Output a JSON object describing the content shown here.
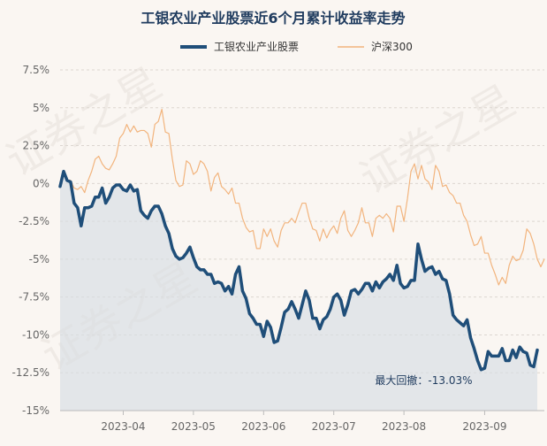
{
  "chart_data": {
    "type": "line",
    "title": "工银农业产业股票近6个月累计收益率走势",
    "legend_position": "top",
    "series": [
      {
        "name": "工银农业产业股票",
        "color": "#1f4e79",
        "area_fill": true,
        "values": [
          -0.2,
          0.8,
          0.2,
          0.1,
          -1.3,
          -1.6,
          -2.8,
          -1.6,
          -1.6,
          -1.5,
          -0.9,
          -0.9,
          -0.3,
          -1.3,
          -0.9,
          -0.3,
          -0.1,
          -0.1,
          -0.4,
          -0.5,
          -0.1,
          -0.5,
          -0.4,
          -1.8,
          -2.1,
          -2.3,
          -1.8,
          -1.5,
          -1.5,
          -2.0,
          -2.8,
          -3.3,
          -4.3,
          -4.8,
          -5.0,
          -4.9,
          -4.6,
          -4.2,
          -4.9,
          -5.5,
          -5.7,
          -5.7,
          -6.0,
          -6.0,
          -6.6,
          -6.5,
          -6.6,
          -7.1,
          -6.8,
          -7.3,
          -6.0,
          -5.5,
          -7.1,
          -7.6,
          -8.6,
          -8.9,
          -9.3,
          -9.3,
          -10.1,
          -9.1,
          -9.5,
          -10.5,
          -10.4,
          -9.5,
          -8.5,
          -8.3,
          -7.8,
          -8.3,
          -8.9,
          -8.0,
          -7.1,
          -7.7,
          -8.9,
          -8.9,
          -9.6,
          -9.0,
          -8.8,
          -8.3,
          -7.5,
          -7.3,
          -7.7,
          -8.7,
          -8.0,
          -7.1,
          -7.0,
          -7.3,
          -7.0,
          -6.6,
          -6.6,
          -7.1,
          -6.5,
          -6.9,
          -6.5,
          -6.3,
          -6.0,
          -6.4,
          -5.4,
          -6.6,
          -6.9,
          -6.8,
          -6.4,
          -6.4,
          -4.0,
          -5.0,
          -5.8,
          -5.6,
          -5.5,
          -6.0,
          -5.8,
          -6.3,
          -6.4,
          -7.3,
          -8.7,
          -9.0,
          -9.2,
          -9.4,
          -9.0,
          -10.2,
          -10.9,
          -11.7,
          -12.3,
          -12.2,
          -11.1,
          -11.4,
          -11.4,
          -11.4,
          -10.9,
          -11.7,
          -11.7,
          -11.0,
          -11.5,
          -10.8,
          -11.1,
          -11.2,
          -12.0,
          -12.1,
          -11.0
        ]
      },
      {
        "name": "沪深300",
        "color": "#f2b47d",
        "area_fill": false,
        "values": [
          0.1,
          0.6,
          0.2,
          0.2,
          -0.3,
          -0.4,
          -0.2,
          -0.6,
          0.2,
          0.8,
          1.6,
          1.8,
          1.3,
          1.0,
          0.9,
          1.3,
          1.8,
          3.0,
          3.3,
          3.9,
          3.4,
          3.8,
          3.4,
          3.5,
          3.5,
          3.3,
          2.4,
          3.9,
          4.1,
          4.9,
          3.4,
          3.3,
          1.6,
          0.2,
          -0.2,
          -0.1,
          1.5,
          1.3,
          0.6,
          0.8,
          1.5,
          1.3,
          0.8,
          -0.5,
          0.4,
          0.7,
          -0.2,
          -0.4,
          -0.7,
          -0.3,
          -1.3,
          -1.3,
          -2.3,
          -2.9,
          -3.2,
          -3.1,
          -4.3,
          -4.3,
          -3.0,
          -3.5,
          -3.0,
          -3.8,
          -4.2,
          -3.1,
          -2.6,
          -2.6,
          -2.3,
          -2.6,
          -1.9,
          -1.3,
          -1.3,
          -2.3,
          -3.0,
          -3.1,
          -3.8,
          -3.0,
          -3.6,
          -3.1,
          -2.8,
          -3.3,
          -2.3,
          -1.8,
          -3.1,
          -3.5,
          -3.1,
          -2.6,
          -1.6,
          -2.6,
          -2.6,
          -3.5,
          -2.3,
          -2.1,
          -2.3,
          -2.0,
          -2.3,
          -3.2,
          -1.5,
          -1.5,
          -2.5,
          -1.0,
          0.8,
          1.3,
          0.3,
          1.2,
          0.3,
          0.1,
          -0.4,
          1.2,
          0.8,
          -0.2,
          -0.1,
          -0.6,
          -0.8,
          -1.3,
          -1.3,
          -2.1,
          -2.5,
          -3.4,
          -4.1,
          -4.0,
          -3.5,
          -4.6,
          -4.6,
          -5.4,
          -6.0,
          -6.7,
          -6.2,
          -6.6,
          -5.4,
          -4.8,
          -5.1,
          -5.0,
          -4.4,
          -3.0,
          -3.3,
          -4.0,
          -5.0,
          -5.5,
          -5.0
        ]
      }
    ],
    "x_ticks": [
      {
        "label": "2023-04",
        "index": 18
      },
      {
        "label": "2023-05",
        "index": 38
      },
      {
        "label": "2023-06",
        "index": 58
      },
      {
        "label": "2023-07",
        "index": 78
      },
      {
        "label": "2023-08",
        "index": 98
      },
      {
        "label": "2023-09",
        "index": 121
      }
    ],
    "y_ticks": [
      7.5,
      5,
      2.5,
      0,
      -2.5,
      -5,
      -7.5,
      -10,
      -12.5,
      -15
    ],
    "y_tick_labels": [
      "7.5%",
      "5%",
      "2.5%",
      "0%",
      "-2.5%",
      "-5%",
      "-7.5%",
      "-10%",
      "-12.5%",
      "-15%"
    ],
    "ylim": [
      -15,
      7.5
    ],
    "grid": "horizontal dashed",
    "annotation": {
      "text": "最大回撤：-13.03%",
      "x_index": 119,
      "y": -13.0
    },
    "watermark": [
      "证券之星",
      "证券之星",
      "证券之星"
    ]
  }
}
